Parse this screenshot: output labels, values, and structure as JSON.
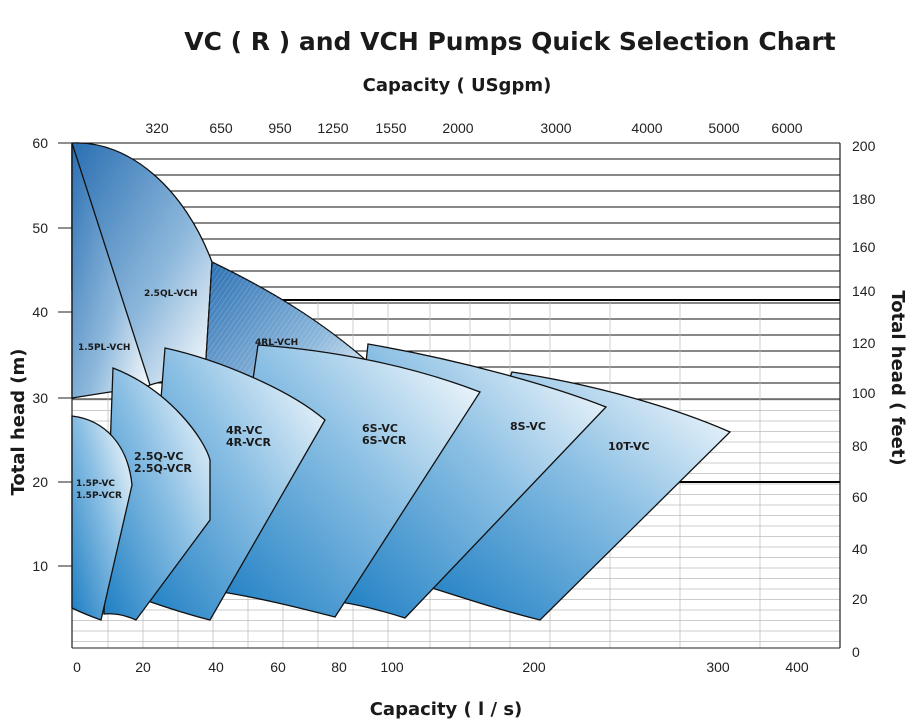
{
  "chart_data": {
    "type": "area",
    "title": "VC ( R ) and VCH Pumps Quick Selection Chart",
    "top_axis_label": "Capacity ( USgpm)",
    "top_ticks": [
      "320",
      "650",
      "950",
      "1250",
      "1550",
      "2000",
      "3000",
      "4000",
      "5000",
      "6000"
    ],
    "xlabel": "Capacity ( l / s)",
    "x_ticks": [
      "0",
      "20",
      "40",
      "60",
      "80",
      "100",
      "200",
      "300",
      "400"
    ],
    "ylabel": "Total head (m)",
    "y_ticks": [
      "10",
      "20",
      "30",
      "40",
      "50",
      "60"
    ],
    "ylim": [
      0,
      60
    ],
    "y2label": "Total head ( feet)",
    "y2_ticks": [
      "0",
      "20",
      "40",
      "60",
      "80",
      "100",
      "120",
      "140",
      "160",
      "180",
      "200"
    ],
    "x_scale": "piecewise (0-100 linear, 100-400 compressed)",
    "grid": true,
    "series": [
      {
        "name": "1.5P-VC\n1.5P-VCR",
        "q_range_lps": [
          0,
          12
        ],
        "head_range_m": [
          4,
          27
        ],
        "color": "#1e7ec0"
      },
      {
        "name": "1.5PL-VCH",
        "q_range_lps": [
          0,
          16
        ],
        "head_range_m": [
          27,
          60
        ],
        "color": "#2d7fbe"
      },
      {
        "name": "2.5Q-VC\n2.5Q-VCR",
        "q_range_lps": [
          8,
          24
        ],
        "head_range_m": [
          4,
          34
        ],
        "color": "#1f7cc0"
      },
      {
        "name": "2.5QL-VCH",
        "q_range_lps": [
          0,
          40
        ],
        "head_range_m": [
          33,
          60
        ],
        "color": "#2e7dbd"
      },
      {
        "name": "4R-VC\n4R-VCR",
        "q_range_lps": [
          20,
          60
        ],
        "head_range_m": [
          4,
          36
        ],
        "color": "#1f7ac0"
      },
      {
        "name": "4RL-VCH",
        "q_range_lps": [
          40,
          80
        ],
        "head_range_m": [
          29,
          46
        ],
        "color": "#2d7cbd"
      },
      {
        "name": "6S-VC\n6S-VCR",
        "q_range_lps": [
          40,
          130
        ],
        "head_range_m": [
          4,
          36
        ],
        "color": "#1f7ac0"
      },
      {
        "name": "8S-VC",
        "q_range_lps": [
          85,
          230
        ],
        "head_range_m": [
          4,
          36
        ],
        "color": "#1f7ac0"
      },
      {
        "name": "10T-VC",
        "q_range_lps": [
          110,
          320
        ],
        "head_range_m": [
          4,
          33
        ],
        "color": "#1f7ac0"
      }
    ]
  }
}
